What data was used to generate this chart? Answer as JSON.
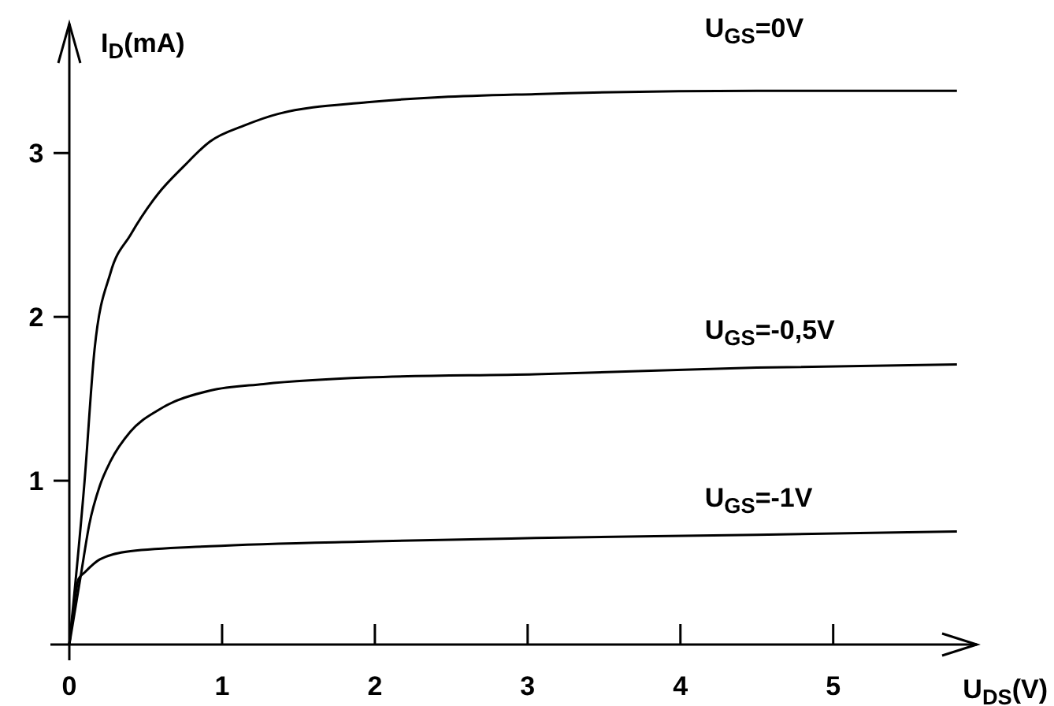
{
  "chart_data": {
    "type": "line",
    "xlabel": "U$_{DS}$(V)",
    "ylabel": "I$_{D}$(mA)",
    "xlim": [
      0,
      5.94
    ],
    "ylim": [
      0,
      3.79
    ],
    "xticks": [
      0,
      1,
      2,
      3,
      4,
      5
    ],
    "yticks": [
      1,
      2,
      3
    ],
    "grid": false,
    "marker": "none",
    "line_style": "solid",
    "series": [
      {
        "name": "U$_{GS}$=0V",
        "color": "#000000",
        "x": [
          0,
          0.1,
          0.165,
          0.27,
          0.4,
          0.58,
          0.75,
          0.92,
          1.15,
          1.37,
          1.95,
          3.05,
          4.5,
          5.81
        ],
        "values": [
          0,
          1.0,
          1.8,
          2.27,
          2.5,
          2.75,
          2.92,
          3.07,
          3.17,
          3.24,
          3.31,
          3.36,
          3.38,
          3.38
        ]
      },
      {
        "name": "U$_{GS}$=-0,5V",
        "color": "#000000",
        "x": [
          0,
          0.08,
          0.13,
          0.2,
          0.27,
          0.4,
          0.58,
          0.92,
          1.27,
          1.95,
          3.05,
          4.5,
          5.81
        ],
        "values": [
          0,
          0.45,
          0.73,
          0.97,
          1.12,
          1.3,
          1.43,
          1.55,
          1.59,
          1.63,
          1.65,
          1.69,
          1.71
        ]
      },
      {
        "name": "U$_{GS}$=-1V",
        "color": "#000000",
        "x": [
          0,
          0.04,
          0.06,
          0.1,
          0.2,
          0.4,
          0.92,
          2,
          3.05,
          4.5,
          5.81
        ],
        "values": [
          0,
          0.3,
          0.4,
          0.44,
          0.52,
          0.57,
          0.6,
          0.63,
          0.65,
          0.67,
          0.69
        ]
      }
    ]
  }
}
